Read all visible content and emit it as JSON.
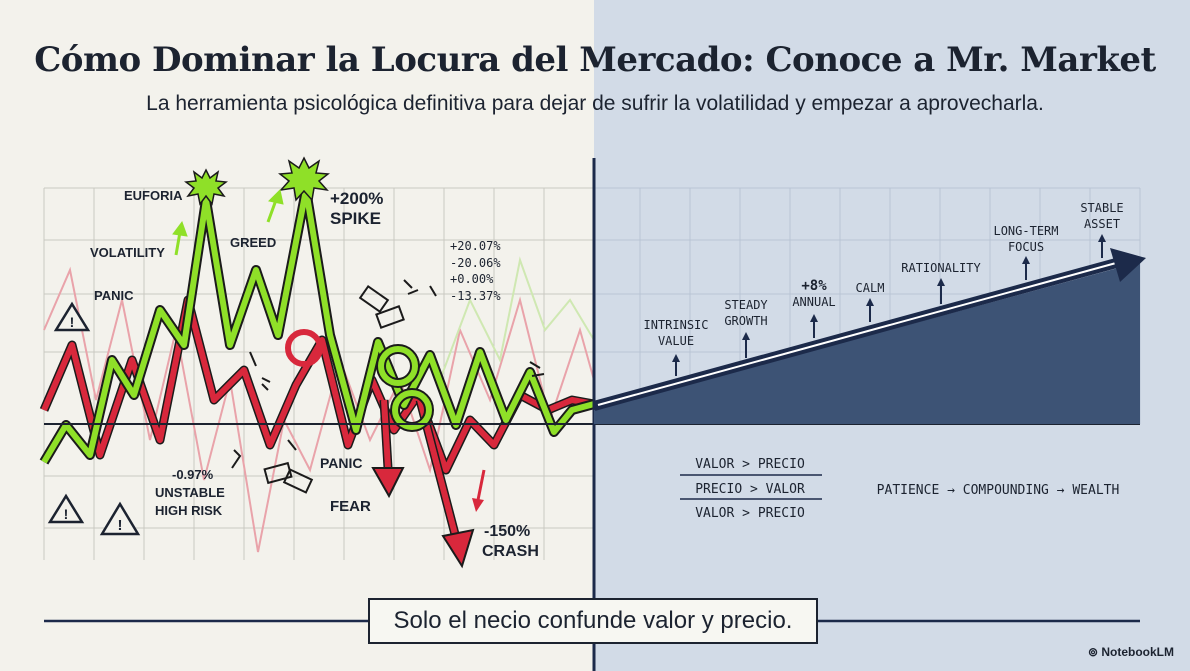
{
  "title": "Cómo Dominar la Locura del Mercado: Conoce a Mr. Market",
  "subtitle": "La herramienta psicológica definitiva para dejar de sufrir la volatilidad y empezar a aprovecharla.",
  "left_labels": {
    "euforia": "EUFORIA",
    "volatility": "VOLATILITY",
    "panic_top": "PANIC",
    "greed": "GREED",
    "spike_pct": "+200%",
    "spike": "SPIKE",
    "stats": [
      "+20.07%",
      "-20.06%",
      "+0.00%",
      "-13.37%"
    ],
    "neg_pct": "-0.97%",
    "unstable": "UNSTABLE",
    "high_risk": "HIGH RISK",
    "panic_bottom": "PANIC",
    "fear": "FEAR",
    "crash_pct": "-150%",
    "crash": "CRASH"
  },
  "right_labels": {
    "intrinsic": [
      "INTRINSIC",
      "VALUE"
    ],
    "steady": [
      "STEADY",
      "GROWTH"
    ],
    "annual": [
      "+8%",
      "ANNUAL"
    ],
    "calm": "CALM",
    "rationality": "RATIONALITY",
    "longterm": [
      "LONG-TERM",
      "FOCUS"
    ],
    "stable": [
      "STABLE",
      "ASSET"
    ],
    "comparisons": [
      "VALOR  >  PRECIO",
      "PRECIO  >  VALOR",
      "VALOR  >  PRECIO"
    ],
    "formula": "PATIENCE → COMPOUNDING → WEALTH"
  },
  "quote": "Solo el necio confunde valor y precio.",
  "brand": "NotebookLM",
  "colors": {
    "navy": "#1c2a4a",
    "green": "#8fe028",
    "red": "#d8283c",
    "ink": "#1c2330",
    "right_bg": "#d2dbe7"
  }
}
